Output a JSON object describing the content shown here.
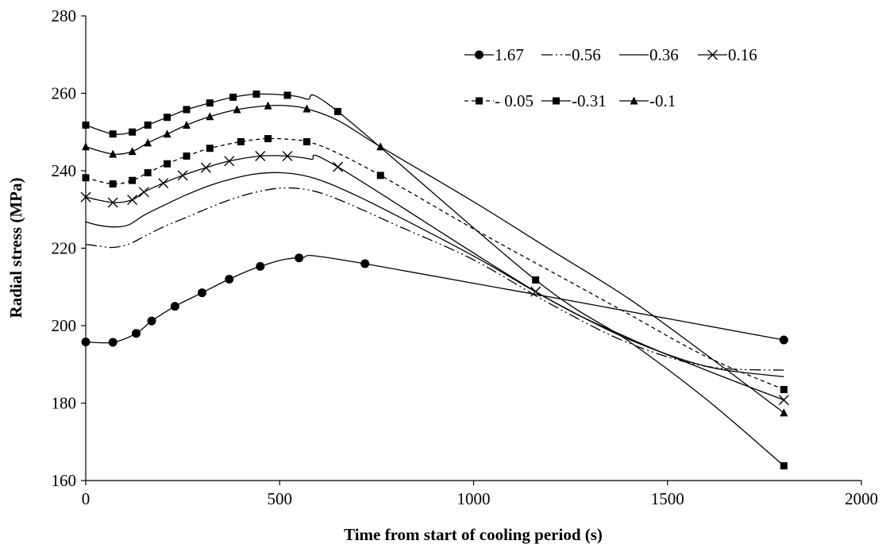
{
  "chart_data": {
    "type": "line",
    "title": "",
    "xlabel": "Time from start of cooling period (s)",
    "ylabel": "Radial stress (MPa)",
    "xlim": [
      0,
      2000
    ],
    "ylim": [
      160,
      280
    ],
    "xticks": [
      0,
      500,
      1000,
      1500,
      2000
    ],
    "yticks": [
      160,
      180,
      200,
      220,
      240,
      260,
      280
    ],
    "grid": false,
    "legend_position": "top-right",
    "series": [
      {
        "name": "1.67",
        "marker": "circle",
        "dash": "solid",
        "x": [
          0,
          70,
          130,
          170,
          230,
          300,
          370,
          450,
          550,
          720,
          1800
        ],
        "y": [
          195.8,
          195.7,
          198.0,
          201.2,
          205.0,
          208.5,
          212.0,
          215.3,
          217.5,
          216.0,
          196.3
        ],
        "markers_x": [
          0,
          70,
          130,
          170,
          230,
          300,
          370,
          450,
          550,
          720,
          1800
        ],
        "markers_y": [
          195.8,
          195.7,
          198.0,
          201.2,
          205.0,
          208.5,
          212.0,
          215.3,
          217.5,
          216.0,
          196.3
        ]
      },
      {
        "name": "0.56",
        "marker": "none",
        "dash": "dash-dot-dot",
        "x": [
          0,
          30,
          70,
          110,
          150,
          200,
          260,
          320,
          380,
          440,
          500,
          560,
          620,
          700,
          800,
          1000,
          1200,
          1400,
          1600,
          1800
        ],
        "y": [
          221.0,
          220.6,
          220.2,
          221.0,
          223.0,
          225.5,
          228.0,
          230.5,
          232.8,
          234.5,
          235.5,
          235.3,
          233.8,
          230.5,
          226.0,
          217.0,
          205.5,
          195.5,
          189.5,
          188.5
        ],
        "markers_x": [],
        "markers_y": []
      },
      {
        "name": "0.36",
        "marker": "none",
        "dash": "solid",
        "x": [
          0,
          30,
          70,
          110,
          150,
          200,
          260,
          320,
          380,
          440,
          500,
          560,
          620,
          700,
          800,
          1000,
          1200,
          1400,
          1600,
          1800
        ],
        "y": [
          226.8,
          226.0,
          225.5,
          226.0,
          228.5,
          231.0,
          233.8,
          236.2,
          238.0,
          239.2,
          239.5,
          238.8,
          237.0,
          233.5,
          228.5,
          218.0,
          206.5,
          196.5,
          189.5,
          186.8
        ],
        "markers_x": [],
        "markers_y": []
      },
      {
        "name": "0.16",
        "marker": "x",
        "dash": "solid",
        "x": [
          0,
          70,
          120,
          150,
          200,
          250,
          310,
          370,
          450,
          520,
          580,
          650,
          1160,
          1400,
          1600,
          1800
        ],
        "y": [
          233.2,
          231.8,
          232.5,
          234.5,
          236.8,
          238.8,
          240.8,
          242.5,
          243.8,
          243.8,
          243.0,
          241.0,
          208.8,
          196.8,
          188.5,
          180.8
        ],
        "markers_x": [
          0,
          70,
          120,
          150,
          200,
          250,
          310,
          370,
          450,
          520,
          650,
          1160,
          1800
        ],
        "markers_y": [
          233.2,
          231.8,
          232.5,
          234.5,
          236.8,
          238.8,
          240.8,
          242.5,
          243.8,
          243.8,
          241.0,
          208.8,
          180.8
        ]
      },
      {
        "name": "- 0.05",
        "marker": "square",
        "dash": "dotted",
        "x": [
          0,
          70,
          120,
          160,
          210,
          260,
          320,
          400,
          470,
          540,
          580,
          640,
          760,
          1000,
          1200,
          1400,
          1600,
          1800
        ],
        "y": [
          238.2,
          236.6,
          237.5,
          239.5,
          241.8,
          243.8,
          245.8,
          247.5,
          248.3,
          248.0,
          247.3,
          245.0,
          238.8,
          225.0,
          214.0,
          203.0,
          192.0,
          183.5
        ],
        "markers_x": [
          0,
          70,
          120,
          160,
          210,
          260,
          320,
          400,
          470,
          570,
          760,
          1800
        ],
        "markers_y": [
          238.2,
          236.6,
          237.5,
          239.5,
          241.8,
          243.8,
          245.8,
          247.5,
          248.3,
          247.5,
          238.8,
          183.5
        ]
      },
      {
        "name": "-0.31",
        "marker": "square",
        "dash": "solid",
        "x": [
          0,
          70,
          120,
          160,
          210,
          260,
          320,
          380,
          440,
          520,
          570,
          650,
          1160,
          1400,
          1600,
          1800
        ],
        "y": [
          251.8,
          249.5,
          250.0,
          251.8,
          253.8,
          255.8,
          257.5,
          259.0,
          259.8,
          259.5,
          258.5,
          255.3,
          211.8,
          196.0,
          181.0,
          163.8
        ],
        "markers_x": [
          0,
          70,
          120,
          160,
          210,
          260,
          320,
          380,
          440,
          520,
          650,
          1160,
          1800
        ],
        "markers_y": [
          251.8,
          249.5,
          250.0,
          251.8,
          253.8,
          255.8,
          257.5,
          259.0,
          259.8,
          259.5,
          255.3,
          211.8,
          163.8
        ]
      },
      {
        "name": "-0.1",
        "marker": "triangle",
        "dash": "solid",
        "x": [
          0,
          70,
          120,
          160,
          210,
          260,
          320,
          390,
          470,
          520,
          570,
          650,
          760,
          1000,
          1200,
          1400,
          1600,
          1800
        ],
        "y": [
          246.2,
          244.3,
          245.0,
          247.2,
          249.5,
          251.8,
          254.0,
          255.8,
          256.8,
          256.8,
          256.0,
          253.0,
          246.2,
          232.0,
          219.5,
          207.0,
          192.5,
          177.5
        ],
        "markers_x": [
          0,
          70,
          120,
          160,
          210,
          260,
          320,
          390,
          470,
          570,
          760,
          1800
        ],
        "markers_y": [
          246.2,
          244.3,
          245.0,
          247.2,
          249.5,
          251.8,
          254.0,
          255.8,
          256.8,
          256.0,
          246.2,
          177.5
        ]
      }
    ]
  }
}
